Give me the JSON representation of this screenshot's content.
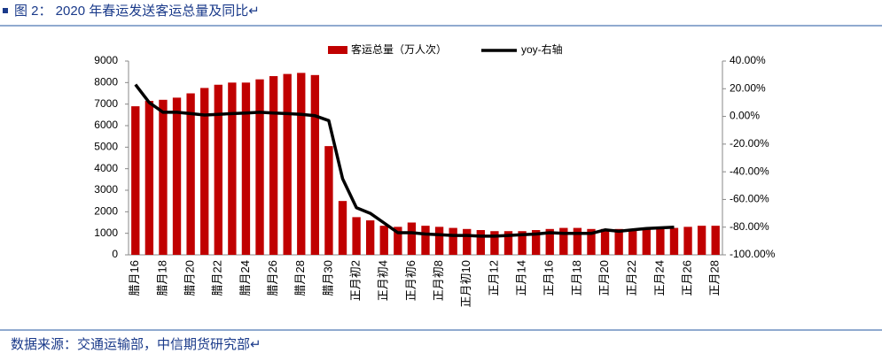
{
  "header": {
    "title": "图 2：    2020 年春运发送客运总量及同比↵"
  },
  "chart_data": {
    "type": "bar",
    "categories": [
      "腊月16",
      null,
      "腊月18",
      null,
      "腊月20",
      null,
      "腊月22",
      null,
      "腊月24",
      null,
      "腊月26",
      null,
      "腊月28",
      null,
      "腊月30",
      null,
      "正月初2",
      null,
      "正月初4",
      null,
      "正月初6",
      null,
      "正月初8",
      null,
      "正月初10",
      null,
      "正月12",
      null,
      "正月14",
      null,
      "正月16",
      null,
      "正月18",
      null,
      "正月20",
      null,
      "正月22",
      null,
      "正月24",
      null,
      "正月26",
      null,
      "正月28"
    ],
    "series": [
      {
        "name": "客运总量（万人次）",
        "color": "#c00000",
        "values": [
          6900,
          7150,
          7200,
          7300,
          7500,
          7750,
          7900,
          8000,
          8000,
          8150,
          8300,
          8400,
          8450,
          8350,
          5050,
          2500,
          1750,
          1600,
          1350,
          1300,
          1500,
          1350,
          1300,
          1250,
          1200,
          1150,
          1100,
          1100,
          1100,
          1150,
          1200,
          1250,
          1250,
          1200,
          1200,
          1200,
          1200,
          1250,
          1250,
          1250,
          1300,
          1350,
          1350
        ]
      },
      {
        "name": "yoy-右轴",
        "color": "#000000",
        "axis": "y2",
        "values": [
          23,
          10,
          3,
          3,
          2,
          1,
          1.5,
          2,
          2.5,
          3,
          2.5,
          2,
          1.5,
          0.5,
          -3,
          -45,
          -66,
          -70,
          -77,
          -84,
          -84,
          -85,
          -85.5,
          -86,
          -86,
          -86.5,
          -86.5,
          -86,
          -85.5,
          -85,
          -84,
          -84.5,
          -84.5,
          -84.5,
          -82,
          -83,
          -82,
          -81,
          -80.5,
          -80,
          null,
          null,
          null
        ]
      }
    ],
    "ylim": [
      0,
      9000
    ],
    "yticks": [
      0,
      1000,
      2000,
      3000,
      4000,
      5000,
      6000,
      7000,
      8000,
      9000
    ],
    "y2lim": [
      -100,
      40
    ],
    "y2ticks": [
      {
        "value": -100,
        "label": "-100.00%"
      },
      {
        "value": -80,
        "label": "-80.00%"
      },
      {
        "value": -60,
        "label": "-60.00%"
      },
      {
        "value": -40,
        "label": "-40.00%"
      },
      {
        "value": -20,
        "label": "-20.00%"
      },
      {
        "value": 0,
        "label": "0.00%"
      },
      {
        "value": 20,
        "label": "20.00%"
      },
      {
        "value": 40,
        "label": "40.00%"
      }
    ]
  },
  "footer": {
    "source": "数据来源：交通运输部，中信期货研究部↵"
  }
}
